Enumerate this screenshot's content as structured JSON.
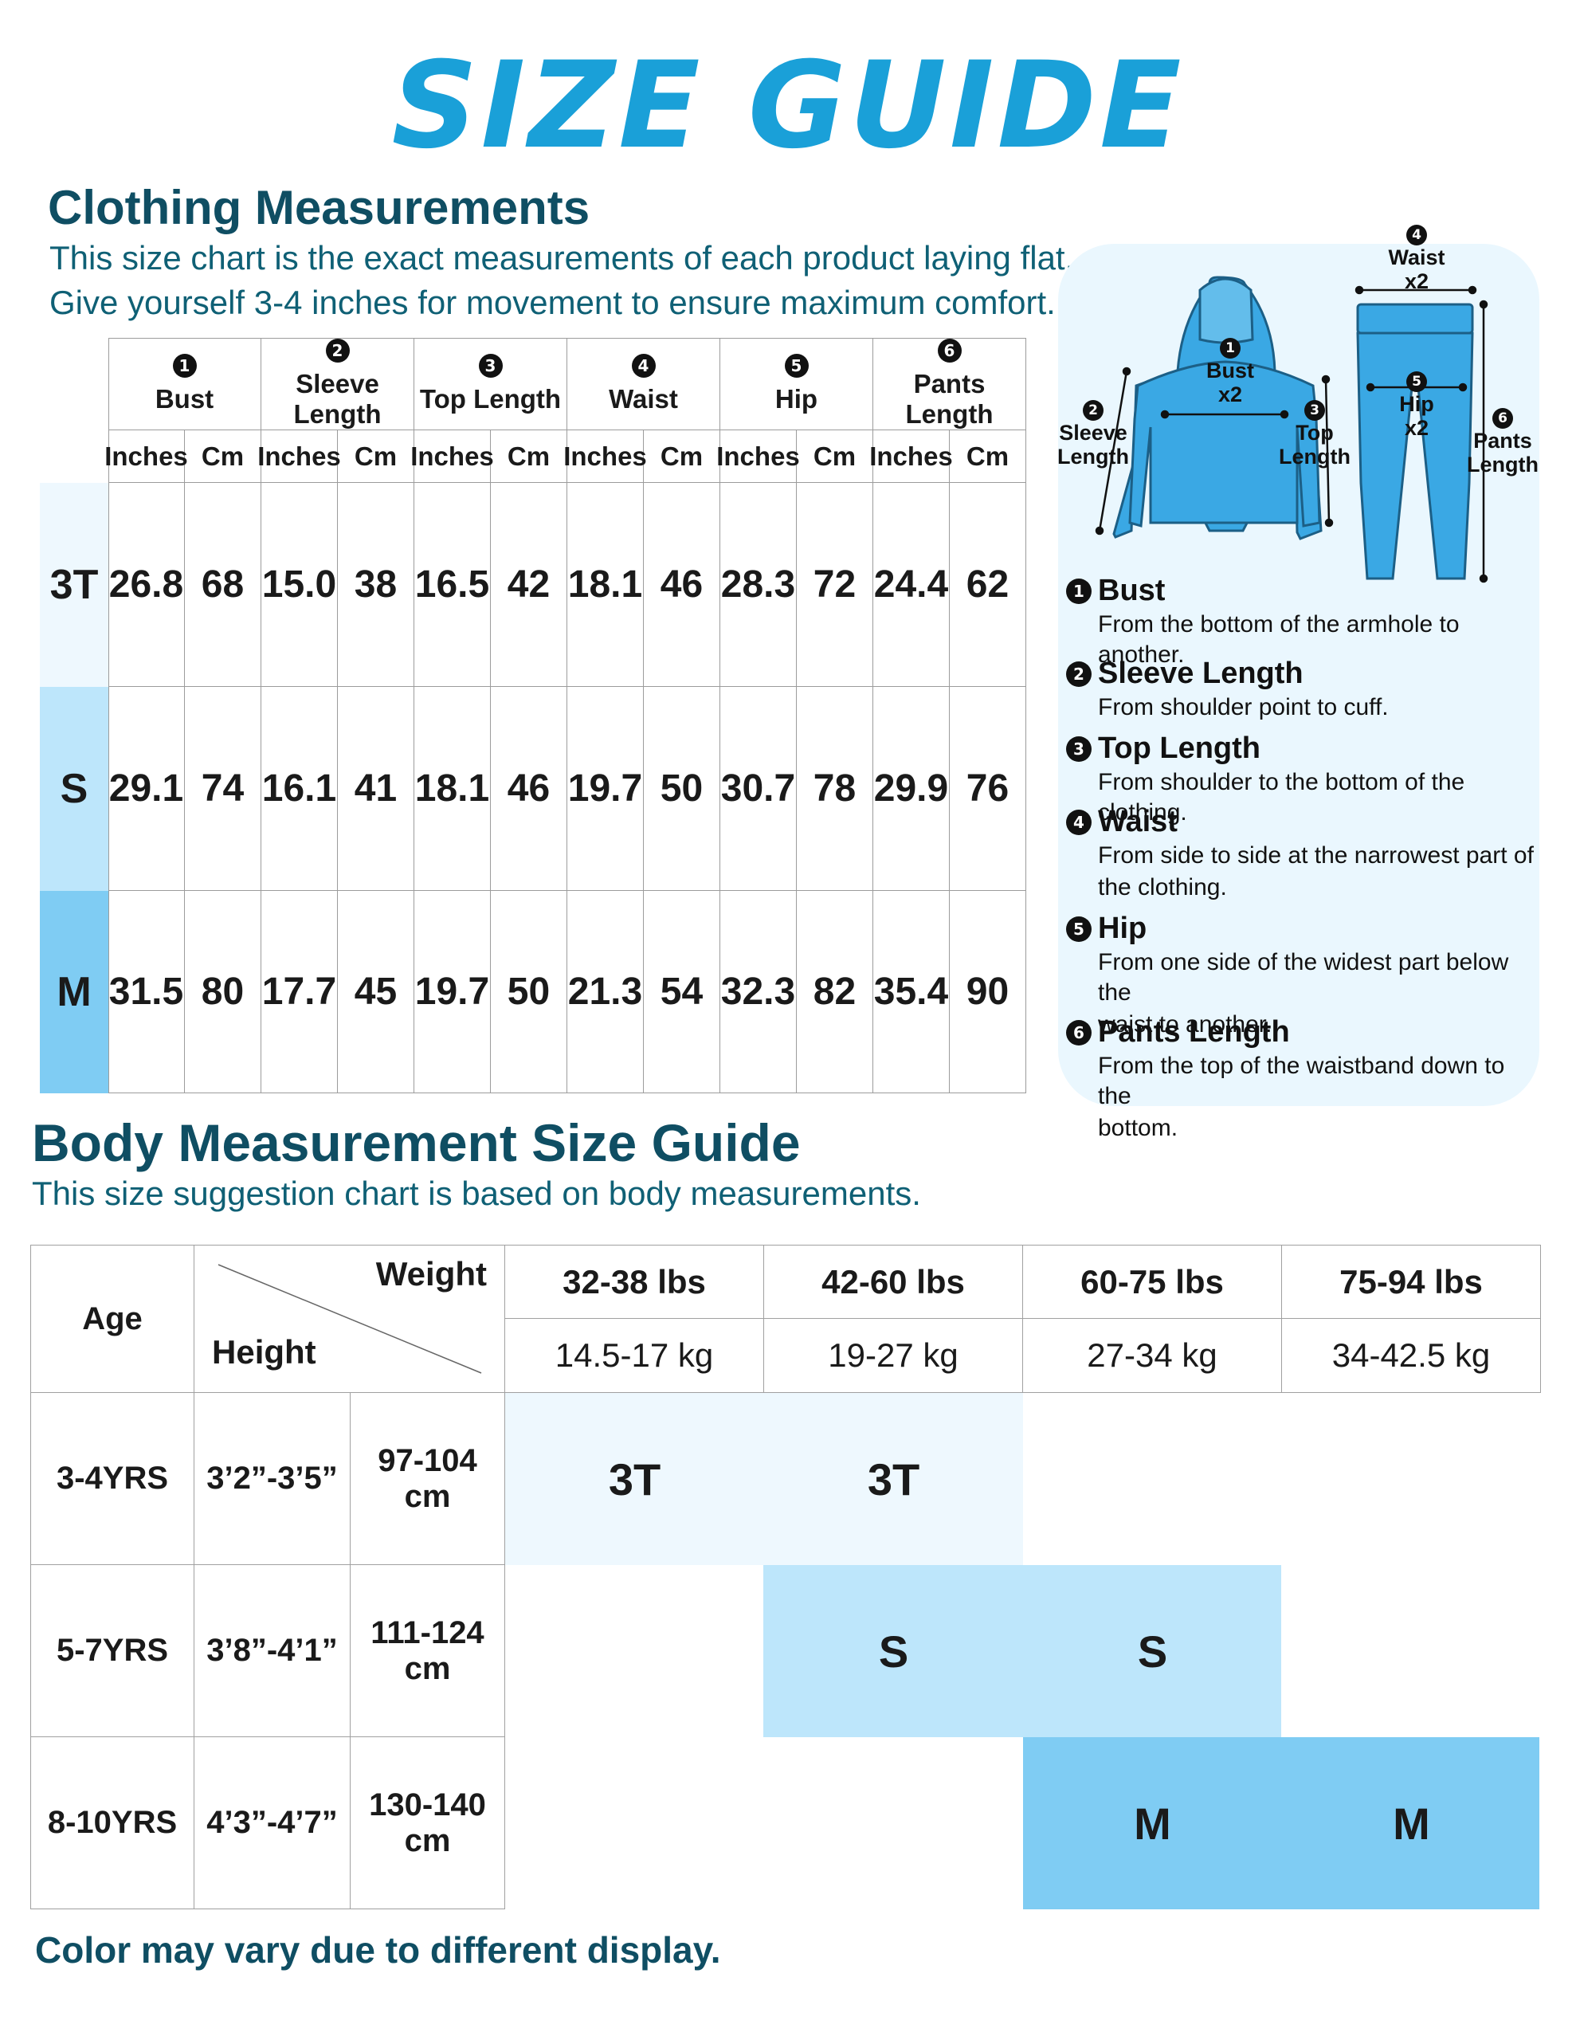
{
  "title": "SIZE GUIDE",
  "clothing": {
    "heading": "Clothing Measurements",
    "subtitle_1": "This size chart is the exact measurements of each product laying flat.",
    "subtitle_2": "Give yourself 3-4 inches for movement to ensure maximum comfort.",
    "columns": [
      {
        "num": "1",
        "label": "Bust"
      },
      {
        "num": "2",
        "label": "Sleeve Length"
      },
      {
        "num": "3",
        "label": "Top Length"
      },
      {
        "num": "4",
        "label": "Waist"
      },
      {
        "num": "5",
        "label": "Hip"
      },
      {
        "num": "6",
        "label": "Pants Length"
      }
    ],
    "unit_in": "Inches",
    "unit_cm": "Cm",
    "rows": [
      {
        "size": "3T",
        "values": [
          "26.8",
          "68",
          "15.0",
          "38",
          "16.5",
          "42",
          "18.1",
          "46",
          "28.3",
          "72",
          "24.4",
          "62"
        ]
      },
      {
        "size": "S",
        "values": [
          "29.1",
          "74",
          "16.1",
          "41",
          "18.1",
          "46",
          "19.7",
          "50",
          "30.7",
          "78",
          "29.9",
          "76"
        ]
      },
      {
        "size": "M",
        "values": [
          "31.5",
          "80",
          "17.7",
          "45",
          "19.7",
          "50",
          "21.3",
          "54",
          "32.3",
          "82",
          "35.4",
          "90"
        ]
      }
    ],
    "row_colors": [
      "#eef8fe",
      "#bde6fb",
      "#7fccf3"
    ]
  },
  "diagram": {
    "bust": "Bust",
    "x2": "x2",
    "sleeve": "Sleeve",
    "length": "Length",
    "top": "Top",
    "waist": "Waist",
    "hip": "Hip",
    "pants": "Pants",
    "num_1": "1",
    "num_2": "2",
    "num_3": "3",
    "num_4": "4",
    "num_5": "5",
    "num_6": "6",
    "garment_color": "#3aa8e4"
  },
  "definitions": [
    {
      "num": "1",
      "term": "Bust",
      "lines": [
        "From the bottom of the armhole to another."
      ]
    },
    {
      "num": "2",
      "term": "Sleeve Length",
      "lines": [
        "From shoulder point to cuff."
      ]
    },
    {
      "num": "3",
      "term": "Top Length",
      "lines": [
        "From shoulder to the bottom of the clothing."
      ]
    },
    {
      "num": "4",
      "term": "Waist",
      "lines": [
        "From side to side at the narrowest part of",
        "the clothing."
      ]
    },
    {
      "num": "5",
      "term": "Hip",
      "lines": [
        "From one side of the widest part below the",
        "waist to another."
      ]
    },
    {
      "num": "6",
      "term": "Pants Length",
      "lines": [
        "From the top of the waistband down to the",
        "bottom."
      ]
    }
  ],
  "body": {
    "heading": "Body Measurement Size Guide",
    "subtitle": "This size suggestion chart is based on body measurements.",
    "age_label": "Age",
    "weight_label": "Weight",
    "height_label": "Height",
    "weights_lbs": [
      "32-38 lbs",
      "42-60 lbs",
      "60-75 lbs",
      "75-94 lbs"
    ],
    "weights_kg": [
      "14.5-17 kg",
      "19-27 kg",
      "27-34 kg",
      "34-42.5 kg"
    ],
    "rows": [
      {
        "age": "3-4YRS",
        "ft": "3’2”-3’5”",
        "cm": "97-104 cm",
        "sizes": [
          "3T",
          "3T",
          "",
          ""
        ]
      },
      {
        "age": "5-7YRS",
        "ft": "3’8”-4’1”",
        "cm": "111-124 cm",
        "sizes": [
          "",
          "S",
          "S",
          ""
        ]
      },
      {
        "age": "8-10YRS",
        "ft": "4’3”-4’7”",
        "cm": "130-140 cm",
        "sizes": [
          "",
          "",
          "M",
          "M"
        ]
      }
    ]
  },
  "footer": "Color may vary due to different display."
}
